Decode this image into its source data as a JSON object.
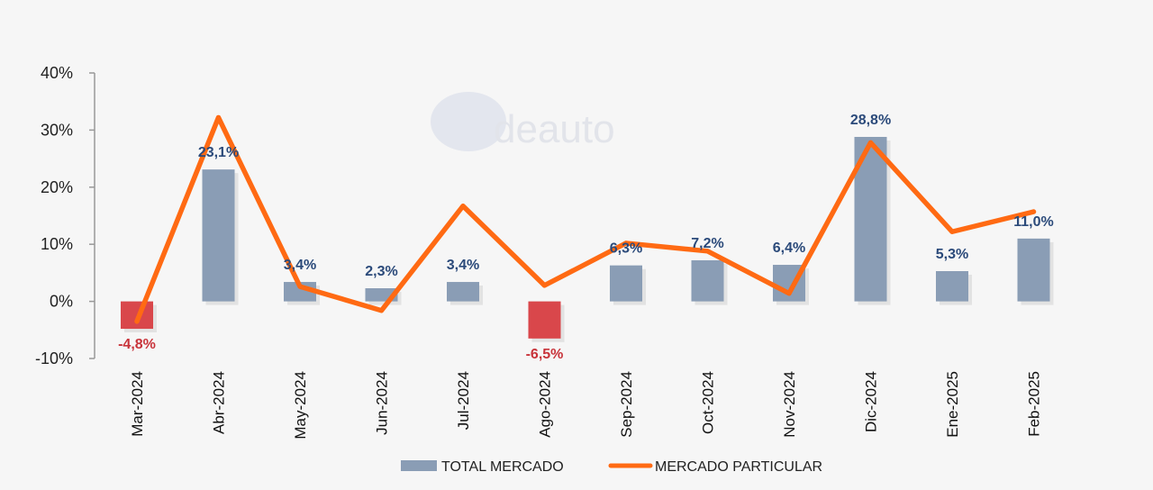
{
  "chart_data": {
    "type": "bar",
    "categories": [
      "Mar-2024",
      "Abr-2024",
      "May-2024",
      "Jun-2024",
      "Jul-2024",
      "Ago-2024",
      "Sep-2024",
      "Oct-2024",
      "Nov-2024",
      "Dic-2024",
      "Ene-2025",
      "Feb-2025"
    ],
    "series": [
      {
        "name": "TOTAL MERCADO",
        "kind": "bar",
        "values": [
          -4.8,
          23.1,
          3.4,
          2.3,
          3.4,
          -6.5,
          6.3,
          7.2,
          6.4,
          28.8,
          5.3,
          11.0
        ],
        "labels": [
          "-4,8%",
          "23,1%",
          "3,4%",
          "2,3%",
          "3,4%",
          "-6,5%",
          "6,3%",
          "7,2%",
          "6,4%",
          "28,8%",
          "5,3%",
          "11,0%"
        ]
      },
      {
        "name": "MERCADO PARTICULAR",
        "kind": "line",
        "values": [
          -3.5,
          32.2,
          2.6,
          -1.6,
          16.7,
          2.8,
          10.2,
          8.8,
          1.4,
          27.8,
          12.2,
          15.7
        ]
      }
    ],
    "ylim": [
      -10,
      40
    ],
    "yticks": [
      -10,
      0,
      10,
      20,
      30,
      40
    ],
    "ytick_labels": [
      "-10%",
      "0%",
      "10%",
      "20%",
      "30%",
      "40%"
    ],
    "title": "",
    "xlabel": "",
    "ylabel": "",
    "legend_position": "bottom",
    "grid": false,
    "watermark": "deauto"
  },
  "colors": {
    "bar_positive": "#8a9db5",
    "bar_negative": "#d9474b",
    "line": "#ff6a13",
    "label_positive": "#2b4a7a",
    "label_negative": "#c8333a",
    "axis": "#999999",
    "negative_tick": "#c8333a"
  }
}
